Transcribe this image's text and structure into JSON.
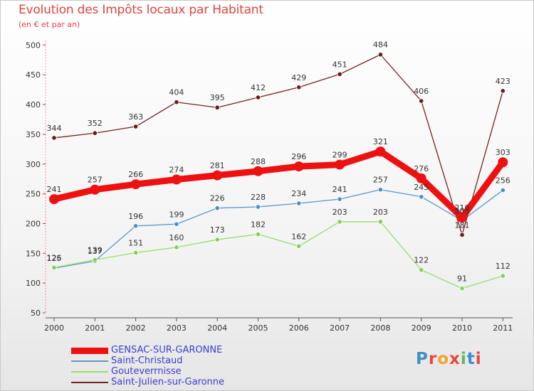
{
  "header": {
    "title": "Evolution des Impôts locaux par Habitant",
    "subtitle": "(en € et par an)"
  },
  "logo": {
    "text": "Proxiti"
  },
  "chart_data": {
    "type": "line",
    "x": [
      "2000",
      "2001",
      "2002",
      "2003",
      "2004",
      "2005",
      "2006",
      "2007",
      "2008",
      "2009",
      "2010",
      "2011"
    ],
    "ylim": [
      50,
      500
    ],
    "yticks": [
      50,
      100,
      150,
      200,
      250,
      300,
      350,
      400,
      450,
      500
    ],
    "grid": false,
    "legend_position": "bottom-left",
    "series": [
      {
        "name": "GENSAC-SUR-GARONNE",
        "color": "#ee1111",
        "values": [
          241,
          257,
          266,
          274,
          281,
          288,
          296,
          299,
          321,
          276,
          210,
          303
        ]
      },
      {
        "name": "Saint-Christaud",
        "color": "#5599cc",
        "values": [
          125,
          137,
          196,
          199,
          226,
          228,
          234,
          241,
          257,
          245,
          205,
          256
        ]
      },
      {
        "name": "Gouteverrnisse",
        "color": "#99dd66",
        "values": [
          126,
          139,
          151,
          160,
          173,
          182,
          162,
          203,
          203,
          122,
          91,
          112
        ]
      },
      {
        "name": "Saint-Julien-sur-Garonne",
        "color": "#772222",
        "values": [
          344,
          352,
          363,
          404,
          395,
          412,
          429,
          451,
          484,
          406,
          181,
          423
        ]
      }
    ]
  }
}
